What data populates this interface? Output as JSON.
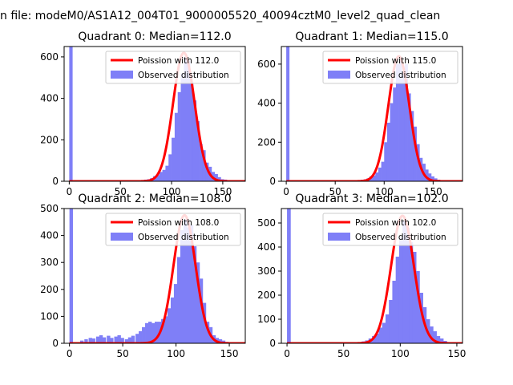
{
  "figure": {
    "title": "n file: modeM0/AS1A12_004T01_9000005520_40094cztM0_level2_quad_clean"
  },
  "chart_data": [
    {
      "type": "bar",
      "title": "Quadrant 0: Median=112.0",
      "xlim": [
        -5,
        172
      ],
      "ylim": [
        0,
        650
      ],
      "xticks": [
        0,
        50,
        100,
        150
      ],
      "yticks": [
        0,
        200,
        400,
        600
      ],
      "legend_position": "top-right",
      "poisson_mean": 112,
      "poisson_peak": 620,
      "series": [
        {
          "name": "Poission with 112.0",
          "kind": "line",
          "color": "#ff0000"
        },
        {
          "name": "Observed distribution",
          "kind": "histogram",
          "color": "#7f7ff7",
          "bin_width": 3.3,
          "bins": [
            [
              0,
              650
            ],
            [
              73,
              8
            ],
            [
              76,
              10
            ],
            [
              79,
              15
            ],
            [
              82,
              25
            ],
            [
              85,
              30
            ],
            [
              88,
              45
            ],
            [
              91,
              55
            ],
            [
              94,
              75
            ],
            [
              97,
              130
            ],
            [
              100,
              210
            ],
            [
              103,
              330
            ],
            [
              106,
              430
            ],
            [
              109,
              520
            ],
            [
              112,
              600
            ],
            [
              115,
              580
            ],
            [
              118,
              480
            ],
            [
              121,
              390
            ],
            [
              124,
              290
            ],
            [
              127,
              180
            ],
            [
              130,
              150
            ],
            [
              133,
              90
            ],
            [
              136,
              70
            ],
            [
              139,
              45
            ],
            [
              142,
              35
            ],
            [
              145,
              20
            ],
            [
              148,
              10
            ],
            [
              151,
              8
            ],
            [
              154,
              5
            ]
          ]
        }
      ]
    },
    {
      "type": "bar",
      "title": "Quadrant 1: Median=115.0",
      "xlim": [
        -5,
        180
      ],
      "ylim": [
        0,
        690
      ],
      "xticks": [
        0,
        50,
        100,
        150
      ],
      "yticks": [
        0,
        200,
        400,
        600
      ],
      "legend_position": "top-right",
      "poisson_mean": 115,
      "poisson_peak": 640,
      "series": [
        {
          "name": "Poission with 115.0",
          "kind": "line",
          "color": "#ff0000"
        },
        {
          "name": "Observed distribution",
          "kind": "histogram",
          "color": "#7f7ff7",
          "bin_width": 3.3,
          "bins": [
            [
              0,
              690
            ],
            [
              73,
              5
            ],
            [
              76,
              8
            ],
            [
              79,
              10
            ],
            [
              82,
              15
            ],
            [
              85,
              25
            ],
            [
              88,
              30
            ],
            [
              91,
              45
            ],
            [
              94,
              70
            ],
            [
              97,
              100
            ],
            [
              100,
              200
            ],
            [
              103,
              300
            ],
            [
              106,
              400
            ],
            [
              109,
              480
            ],
            [
              112,
              600
            ],
            [
              115,
              620
            ],
            [
              118,
              560
            ],
            [
              121,
              600
            ],
            [
              124,
              450
            ],
            [
              127,
              360
            ],
            [
              130,
              280
            ],
            [
              133,
              190
            ],
            [
              136,
              120
            ],
            [
              139,
              90
            ],
            [
              142,
              60
            ],
            [
              145,
              40
            ],
            [
              148,
              25
            ],
            [
              151,
              15
            ],
            [
              154,
              8
            ],
            [
              157,
              5
            ]
          ]
        }
      ]
    },
    {
      "type": "bar",
      "title": "Quadrant 2: Median=108.0",
      "xlim": [
        -5,
        165
      ],
      "ylim": [
        0,
        500
      ],
      "xticks": [
        0,
        50,
        100,
        150
      ],
      "yticks": [
        0,
        100,
        200,
        300,
        400,
        500
      ],
      "legend_position": "top-right",
      "poisson_mean": 108,
      "poisson_peak": 475,
      "series": [
        {
          "name": "Poission with 108.0",
          "kind": "line",
          "color": "#ff0000"
        },
        {
          "name": "Observed distribution",
          "kind": "histogram",
          "color": "#7f7ff7",
          "bin_width": 3.3,
          "bins": [
            [
              0,
              500
            ],
            [
              10,
              10
            ],
            [
              14,
              15
            ],
            [
              18,
              20
            ],
            [
              21,
              18
            ],
            [
              25,
              25
            ],
            [
              28,
              30
            ],
            [
              31,
              22
            ],
            [
              35,
              28
            ],
            [
              38,
              20
            ],
            [
              42,
              25
            ],
            [
              45,
              30
            ],
            [
              48,
              20
            ],
            [
              52,
              15
            ],
            [
              55,
              22
            ],
            [
              58,
              28
            ],
            [
              62,
              35
            ],
            [
              65,
              45
            ],
            [
              68,
              60
            ],
            [
              71,
              75
            ],
            [
              74,
              80
            ],
            [
              77,
              75
            ],
            [
              80,
              80
            ],
            [
              83,
              80
            ],
            [
              86,
              90
            ],
            [
              89,
              100
            ],
            [
              92,
              130
            ],
            [
              95,
              170
            ],
            [
              98,
              220
            ],
            [
              101,
              320
            ],
            [
              104,
              420
            ],
            [
              107,
              460
            ],
            [
              110,
              430
            ],
            [
              113,
              440
            ],
            [
              116,
              360
            ],
            [
              119,
              300
            ],
            [
              122,
              240
            ],
            [
              125,
              150
            ],
            [
              128,
              80
            ],
            [
              131,
              60
            ],
            [
              134,
              30
            ],
            [
              137,
              20
            ],
            [
              140,
              15
            ],
            [
              143,
              10
            ],
            [
              146,
              5
            ]
          ]
        }
      ]
    },
    {
      "type": "bar",
      "title": "Quadrant 3: Median=102.0",
      "xlim": [
        -5,
        155
      ],
      "ylim": [
        0,
        560
      ],
      "xticks": [
        0,
        50,
        100,
        150
      ],
      "yticks": [
        0,
        100,
        200,
        300,
        400,
        500
      ],
      "legend_position": "top-right",
      "poisson_mean": 102,
      "poisson_peak": 530,
      "series": [
        {
          "name": "Poission with 102.0",
          "kind": "line",
          "color": "#ff0000"
        },
        {
          "name": "Observed distribution",
          "kind": "histogram",
          "color": "#7f7ff7",
          "bin_width": 3.3,
          "bins": [
            [
              0,
              560
            ],
            [
              63,
              5
            ],
            [
              66,
              8
            ],
            [
              69,
              12
            ],
            [
              72,
              20
            ],
            [
              75,
              30
            ],
            [
              78,
              40
            ],
            [
              81,
              65
            ],
            [
              84,
              85
            ],
            [
              87,
              120
            ],
            [
              90,
              180
            ],
            [
              93,
              260
            ],
            [
              96,
              360
            ],
            [
              99,
              440
            ],
            [
              102,
              510
            ],
            [
              105,
              480
            ],
            [
              108,
              420
            ],
            [
              111,
              380
            ],
            [
              114,
              300
            ],
            [
              117,
              210
            ],
            [
              120,
              150
            ],
            [
              123,
              100
            ],
            [
              126,
              70
            ],
            [
              129,
              50
            ],
            [
              132,
              30
            ],
            [
              135,
              20
            ],
            [
              138,
              10
            ],
            [
              141,
              5
            ]
          ]
        }
      ]
    }
  ]
}
